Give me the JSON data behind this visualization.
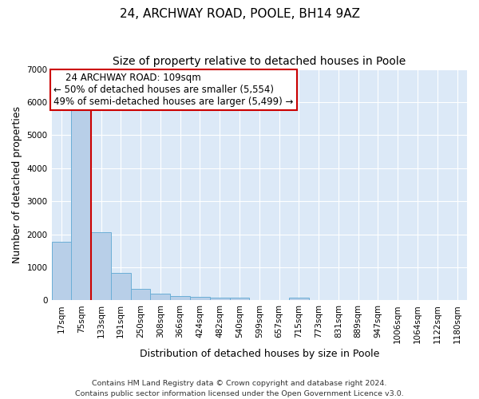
{
  "title": "24, ARCHWAY ROAD, POOLE, BH14 9AZ",
  "subtitle": "Size of property relative to detached houses in Poole",
  "xlabel": "Distribution of detached houses by size in Poole",
  "ylabel": "Number of detached properties",
  "bar_color": "#b8cfe8",
  "bar_edge_color": "#6baed6",
  "plot_bg_color": "#dce9f7",
  "categories": [
    "17sqm",
    "75sqm",
    "133sqm",
    "191sqm",
    "250sqm",
    "308sqm",
    "366sqm",
    "424sqm",
    "482sqm",
    "540sqm",
    "599sqm",
    "657sqm",
    "715sqm",
    "773sqm",
    "831sqm",
    "889sqm",
    "947sqm",
    "1006sqm",
    "1064sqm",
    "1122sqm",
    "1180sqm"
  ],
  "values": [
    1780,
    5760,
    2060,
    820,
    340,
    195,
    120,
    105,
    95,
    75,
    0,
    0,
    95,
    0,
    0,
    0,
    0,
    0,
    0,
    0,
    0
  ],
  "vline_x": 1.5,
  "vline_color": "#cc0000",
  "box_edge_color": "#cc0000",
  "annotation_line1": "    24 ARCHWAY ROAD: 109sqm",
  "annotation_line2": "← 50% of detached houses are smaller (5,554)",
  "annotation_line3": "49% of semi-detached houses are larger (5,499) →",
  "footer_line1": "Contains HM Land Registry data © Crown copyright and database right 2024.",
  "footer_line2": "Contains public sector information licensed under the Open Government Licence v3.0.",
  "ylim": [
    0,
    7000
  ],
  "yticks": [
    0,
    1000,
    2000,
    3000,
    4000,
    5000,
    6000,
    7000
  ],
  "grid_color": "#ffffff",
  "title_fontsize": 11,
  "subtitle_fontsize": 10,
  "tick_fontsize": 7.5,
  "ylabel_fontsize": 9,
  "xlabel_fontsize": 9,
  "annot_fontsize": 8.5,
  "footer_fontsize": 6.8
}
